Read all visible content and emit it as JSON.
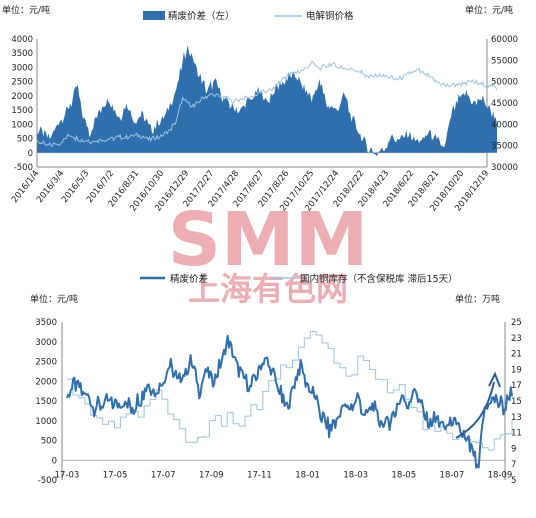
{
  "watermark": {
    "brand": "SMM",
    "subtitle": "上海有色网",
    "color": "#e9a0a6"
  },
  "chart_data": [
    {
      "type": "area+line",
      "title": "",
      "unit_left": "单位：元/吨",
      "unit_right": "单位：元/吨",
      "legend": {
        "area": "精废价差（左）",
        "line": "电解铜价格",
        "placement": "top-center"
      },
      "colors": {
        "area": "#2f6fad",
        "line": "#9ec3e2"
      },
      "y_left": {
        "min": -500,
        "max": 4000,
        "ticks": [
          "-500",
          "0",
          "500",
          "1000",
          "1500",
          "2000",
          "2500",
          "3000",
          "3500",
          "4000"
        ]
      },
      "y_right": {
        "min": 30000,
        "max": 60000,
        "ticks": [
          "30000",
          "35000",
          "40000",
          "45000",
          "50000",
          "55000",
          "60000"
        ]
      },
      "x_ticks": [
        "2016/1/4",
        "2016/3/4",
        "2016/5/3",
        "2016/7/2",
        "2016/8/31",
        "2016/10/30",
        "2016/12/29",
        "2017/2/27",
        "2017/4/28",
        "2017/6/27",
        "2017/8/26",
        "2017/10/25",
        "2017/12/24",
        "2018/2/22",
        "2018/4/23",
        "2018/6/22",
        "2018/8/21",
        "2018/10/20",
        "2018/12/19"
      ],
      "x_tick_position": [
        0,
        1,
        2,
        3,
        4,
        5,
        6,
        7,
        8,
        9,
        10,
        11,
        12,
        13,
        14,
        15,
        16,
        17,
        18
      ],
      "spread_keypoints": [
        [
          0,
          800
        ],
        [
          0.5,
          500
        ],
        [
          1.0,
          1200
        ],
        [
          1.4,
          1800
        ],
        [
          1.6,
          2400
        ],
        [
          1.8,
          1400
        ],
        [
          2.1,
          700
        ],
        [
          2.5,
          1500
        ],
        [
          2.9,
          1900
        ],
        [
          3.3,
          1200
        ],
        [
          3.6,
          1700
        ],
        [
          3.9,
          1100
        ],
        [
          4.2,
          1300
        ],
        [
          4.6,
          800
        ],
        [
          5.0,
          1200
        ],
        [
          5.3,
          1600
        ],
        [
          5.6,
          2300
        ],
        [
          5.8,
          3100
        ],
        [
          6.0,
          3700
        ],
        [
          6.25,
          3300
        ],
        [
          6.5,
          2700
        ],
        [
          6.8,
          2200
        ],
        [
          7.1,
          2500
        ],
        [
          7.4,
          2000
        ],
        [
          7.8,
          1600
        ],
        [
          8.1,
          1500
        ],
        [
          8.5,
          1800
        ],
        [
          8.9,
          2200
        ],
        [
          9.2,
          1800
        ],
        [
          9.6,
          2300
        ],
        [
          9.9,
          2500
        ],
        [
          10.3,
          2800
        ],
        [
          10.6,
          2300
        ],
        [
          11.0,
          1900
        ],
        [
          11.3,
          2500
        ],
        [
          11.6,
          1700
        ],
        [
          12.0,
          1500
        ],
        [
          12.3,
          2000
        ],
        [
          12.6,
          1200
        ],
        [
          13.0,
          500
        ],
        [
          13.3,
          100
        ],
        [
          13.6,
          -100
        ],
        [
          13.9,
          200
        ],
        [
          14.2,
          600
        ],
        [
          14.5,
          400
        ],
        [
          14.8,
          700
        ],
        [
          15.1,
          500
        ],
        [
          15.4,
          400
        ],
        [
          15.7,
          700
        ],
        [
          16.0,
          400
        ],
        [
          16.3,
          200
        ],
        [
          16.6,
          1400
        ],
        [
          16.9,
          1900
        ],
        [
          17.2,
          2100
        ],
        [
          17.5,
          1700
        ],
        [
          17.8,
          1900
        ],
        [
          18.1,
          1500
        ],
        [
          18.4,
          1200
        ]
      ],
      "price_keypoints": [
        [
          0,
          36000
        ],
        [
          0.4,
          35000
        ],
        [
          0.9,
          35500
        ],
        [
          1.3,
          37500
        ],
        [
          1.7,
          36500
        ],
        [
          2.2,
          36000
        ],
        [
          2.8,
          36500
        ],
        [
          3.2,
          37000
        ],
        [
          3.7,
          37000
        ],
        [
          4.1,
          37500
        ],
        [
          4.5,
          36500
        ],
        [
          4.9,
          37000
        ],
        [
          5.3,
          38500
        ],
        [
          5.6,
          41000
        ],
        [
          5.8,
          46000
        ],
        [
          6.0,
          45000
        ],
        [
          6.3,
          44000
        ],
        [
          6.6,
          46000
        ],
        [
          7.0,
          47000
        ],
        [
          7.4,
          46500
        ],
        [
          7.8,
          45500
        ],
        [
          8.2,
          46000
        ],
        [
          8.6,
          46500
        ],
        [
          9.0,
          47500
        ],
        [
          9.4,
          48000
        ],
        [
          9.8,
          50500
        ],
        [
          10.2,
          52000
        ],
        [
          10.6,
          52500
        ],
        [
          11.0,
          54500
        ],
        [
          11.3,
          53000
        ],
        [
          11.7,
          54000
        ],
        [
          12.1,
          53500
        ],
        [
          12.5,
          53000
        ],
        [
          12.9,
          52500
        ],
        [
          13.3,
          51000
        ],
        [
          13.7,
          51500
        ],
        [
          14.1,
          51000
        ],
        [
          14.5,
          50500
        ],
        [
          14.9,
          52000
        ],
        [
          15.3,
          52500
        ],
        [
          15.7,
          51000
        ],
        [
          16.1,
          49500
        ],
        [
          16.5,
          49000
        ],
        [
          16.9,
          49500
        ],
        [
          17.3,
          50000
        ],
        [
          17.7,
          49500
        ],
        [
          18.1,
          49000
        ],
        [
          18.4,
          48500
        ]
      ]
    },
    {
      "type": "line",
      "title": "",
      "unit_left": "单位：元/吨",
      "unit_right": "单位：万吨",
      "legend": {
        "series1": "精废价差",
        "series2": "国内铜库存（不含保税库 滞后15天）",
        "placement": "top-center"
      },
      "colors": {
        "series1": "#2f6fad",
        "series2": "#9ec3e2",
        "arrow": "#2a5f99"
      },
      "y_left": {
        "min": -500,
        "max": 3500,
        "ticks": [
          "-500",
          "0",
          "500",
          "1000",
          "1500",
          "2000",
          "2500",
          "3000",
          "3500"
        ]
      },
      "y_right": {
        "min": 5,
        "max": 25,
        "ticks": [
          "5",
          "7",
          "9",
          "11",
          "13",
          "15",
          "17",
          "19",
          "21",
          "23",
          "25"
        ]
      },
      "x_ticks": [
        "17-03",
        "17-05",
        "17-07",
        "17-09",
        "17-11",
        "18-01",
        "18-03",
        "18-05",
        "18-07",
        "18-09"
      ],
      "x_tick_position": [
        0,
        2,
        4,
        6,
        8,
        10,
        12,
        14,
        16,
        18
      ],
      "spread_keypoints": [
        [
          0,
          1600
        ],
        [
          0.3,
          2000
        ],
        [
          0.6,
          1700
        ],
        [
          0.9,
          1600
        ],
        [
          1.2,
          1300
        ],
        [
          1.5,
          1500
        ],
        [
          1.9,
          1400
        ],
        [
          2.3,
          1500
        ],
        [
          2.7,
          1300
        ],
        [
          3.1,
          1600
        ],
        [
          3.4,
          2000
        ],
        [
          3.7,
          1700
        ],
        [
          4.0,
          2100
        ],
        [
          4.3,
          2400
        ],
        [
          4.6,
          2000
        ],
        [
          4.9,
          2200
        ],
        [
          5.2,
          2500
        ],
        [
          5.5,
          1800
        ],
        [
          5.8,
          2300
        ],
        [
          6.1,
          2000
        ],
        [
          6.4,
          2500
        ],
        [
          6.7,
          3000
        ],
        [
          7.0,
          2500
        ],
        [
          7.3,
          2100
        ],
        [
          7.6,
          1800
        ],
        [
          7.9,
          2200
        ],
        [
          8.2,
          2600
        ],
        [
          8.5,
          2300
        ],
        [
          8.8,
          1800
        ],
        [
          9.1,
          1300
        ],
        [
          9.4,
          1800
        ],
        [
          9.7,
          2400
        ],
        [
          10.0,
          1900
        ],
        [
          10.3,
          1600
        ],
        [
          10.6,
          1100
        ],
        [
          10.9,
          800
        ],
        [
          11.2,
          1000
        ],
        [
          11.5,
          1400
        ],
        [
          11.8,
          1300
        ],
        [
          12.1,
          1600
        ],
        [
          12.4,
          1100
        ],
        [
          12.7,
          1400
        ],
        [
          13.0,
          1000
        ],
        [
          13.3,
          900
        ],
        [
          13.6,
          1200
        ],
        [
          13.9,
          1600
        ],
        [
          14.2,
          1400
        ],
        [
          14.5,
          1800
        ],
        [
          14.8,
          1200
        ],
        [
          15.1,
          900
        ],
        [
          15.4,
          1100
        ],
        [
          15.7,
          800
        ],
        [
          16.0,
          1000
        ],
        [
          16.3,
          800
        ],
        [
          16.6,
          500
        ],
        [
          16.9,
          200
        ],
        [
          17.1,
          -300
        ],
        [
          17.3,
          1100
        ],
        [
          17.6,
          1500
        ],
        [
          17.9,
          1500
        ],
        [
          18.2,
          1300
        ],
        [
          18.5,
          1800
        ]
      ],
      "inventory_keypoints": [
        [
          0,
          17
        ],
        [
          0.4,
          15.5
        ],
        [
          0.8,
          15
        ],
        [
          1.2,
          13
        ],
        [
          1.6,
          11.5
        ],
        [
          2.0,
          12
        ],
        [
          2.4,
          14
        ],
        [
          2.8,
          12.5
        ],
        [
          3.2,
          15
        ],
        [
          3.6,
          16.5
        ],
        [
          4.0,
          15
        ],
        [
          4.4,
          13
        ],
        [
          4.8,
          11
        ],
        [
          5.2,
          9.5
        ],
        [
          5.6,
          11
        ],
        [
          6.0,
          13
        ],
        [
          6.4,
          12
        ],
        [
          6.8,
          13.5
        ],
        [
          7.2,
          12
        ],
        [
          7.6,
          13.5
        ],
        [
          8.0,
          15
        ],
        [
          8.4,
          17
        ],
        [
          8.8,
          19
        ],
        [
          9.2,
          20
        ],
        [
          9.6,
          21
        ],
        [
          10.0,
          23
        ],
        [
          10.3,
          24.5
        ],
        [
          10.6,
          22
        ],
        [
          11.0,
          21
        ],
        [
          11.4,
          19
        ],
        [
          11.8,
          18
        ],
        [
          12.2,
          21
        ],
        [
          12.6,
          19
        ],
        [
          13.0,
          17.5
        ],
        [
          13.4,
          16
        ],
        [
          13.8,
          17
        ],
        [
          14.2,
          15
        ],
        [
          14.6,
          13
        ],
        [
          15.0,
          11
        ],
        [
          15.4,
          11.5
        ],
        [
          15.8,
          11
        ],
        [
          16.2,
          10
        ],
        [
          16.6,
          11
        ],
        [
          17.0,
          10
        ],
        [
          17.4,
          9
        ],
        [
          17.8,
          10
        ],
        [
          18.2,
          11
        ],
        [
          18.5,
          12
        ]
      ]
    }
  ]
}
